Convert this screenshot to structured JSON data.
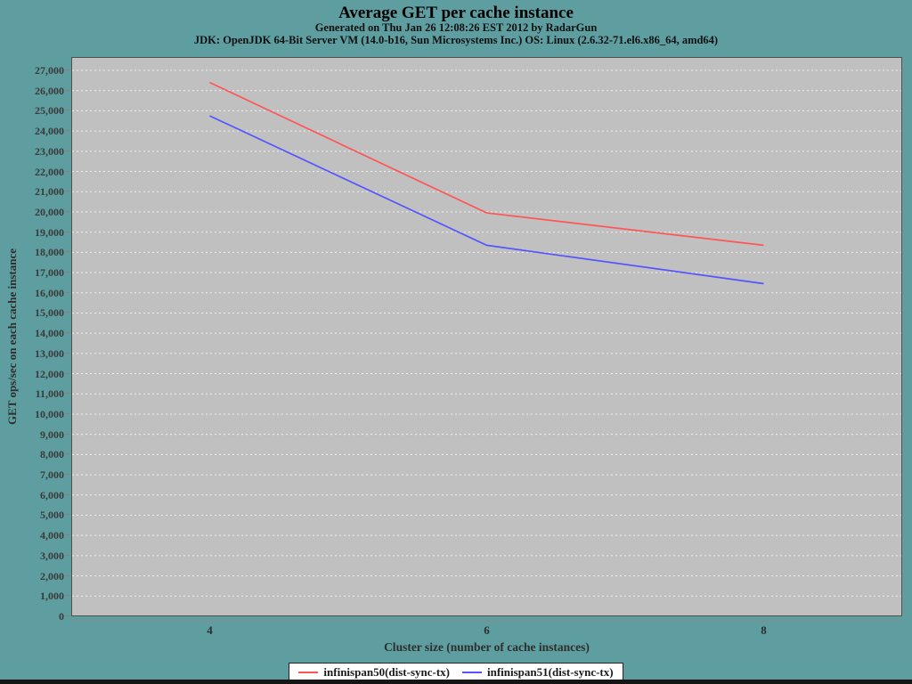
{
  "header": {
    "title": "Average GET per cache instance",
    "subtitle1": "Generated on Thu Jan 26 12:08:26 EST 2012 by RadarGun",
    "subtitle2": "JDK: OpenJDK 64-Bit Server VM (14.0-b16, Sun Microsystems Inc.) OS: Linux (2.6.32-71.el6.x86_64, amd64)"
  },
  "chart_data": {
    "type": "line",
    "title": "Average GET per cache instance",
    "xlabel": "Cluster size (number of cache instances)",
    "ylabel": "GET ops/sec on each cache instance",
    "categories": [
      "4",
      "6",
      "8"
    ],
    "series": [
      {
        "name": "infinispan50(dist-sync-tx)",
        "color": "#ff5555",
        "values": [
          26400,
          19950,
          18350
        ]
      },
      {
        "name": "infinispan51(dist-sync-tx)",
        "color": "#5555ff",
        "values": [
          24750,
          18350,
          16450
        ]
      }
    ],
    "ylim": [
      0,
      27000
    ],
    "ytick_step": 1000,
    "grid": "horizontal-white-dashed",
    "legend_position": "bottom-center"
  },
  "colors": {
    "background": "#5f9ea0",
    "plot_background": "#c0c0c0",
    "gridline": "#efefef",
    "series_red": "#ff5555",
    "series_blue": "#5555ff",
    "bottom_frame": "#151515"
  }
}
